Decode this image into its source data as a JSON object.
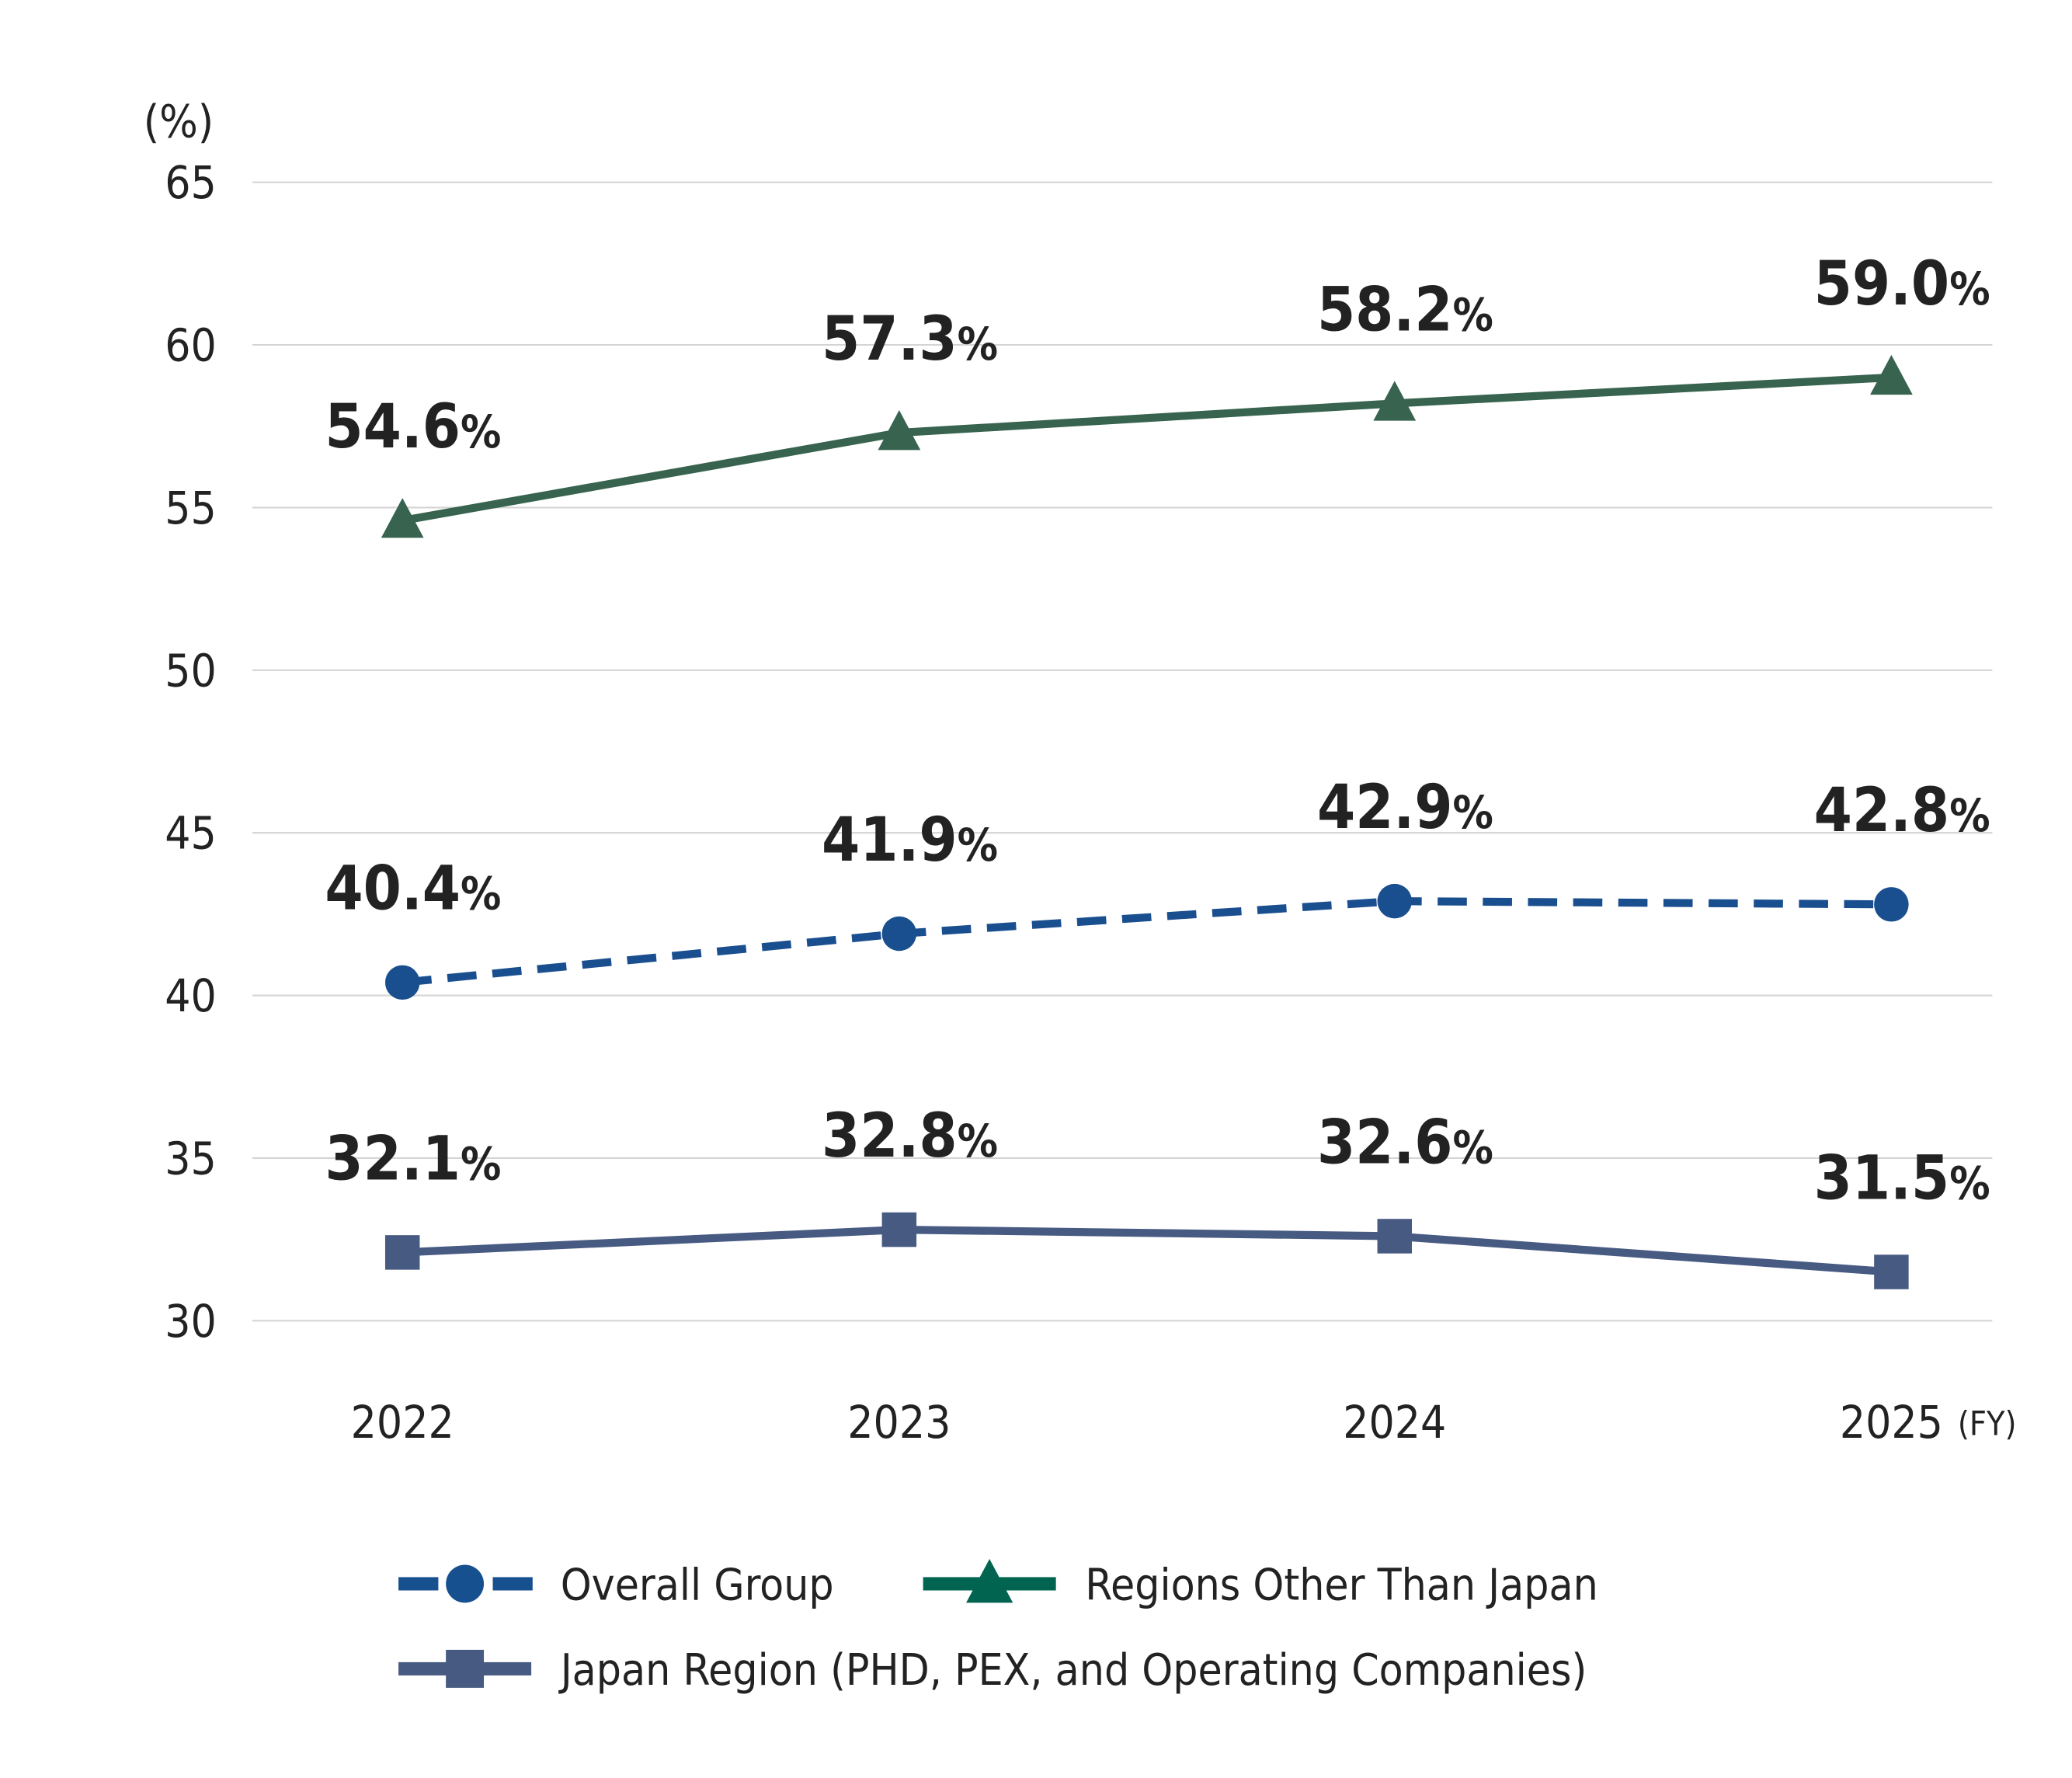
{
  "chart_data": {
    "type": "line",
    "ylabel": "(%)",
    "xlabel_suffix": "(FY)",
    "categories": [
      "2022",
      "2023",
      "2024",
      "2025"
    ],
    "ylim": [
      30,
      65
    ],
    "yticks": [
      30,
      35,
      40,
      45,
      50,
      55,
      60,
      65
    ],
    "grid": true,
    "legend_placement": "bottom",
    "series": [
      {
        "name": "Overall Group",
        "values": [
          40.4,
          41.9,
          42.9,
          42.8
        ],
        "labels": [
          "40.4",
          "41.9",
          "42.9",
          "42.8"
        ],
        "color": "#1a4f8f",
        "legend_color": "#17508f",
        "marker": "circle",
        "dash": true
      },
      {
        "name": "Regions Other Than Japan",
        "values": [
          54.6,
          57.3,
          58.2,
          59.0
        ],
        "labels": [
          "54.6",
          "57.3",
          "58.2",
          "59.0"
        ],
        "color": "#37634f",
        "legend_color": "#006450",
        "marker": "triangle",
        "dash": false
      },
      {
        "name": "Japan Region (PHD, PEX, and Operating Companies)",
        "values": [
          32.1,
          32.8,
          32.6,
          31.5
        ],
        "labels": [
          "32.1",
          "32.8",
          "32.6",
          "31.5"
        ],
        "color": "#475a82",
        "legend_color": "#475a82",
        "marker": "square",
        "dash": false
      }
    ],
    "value_suffix": "%"
  }
}
